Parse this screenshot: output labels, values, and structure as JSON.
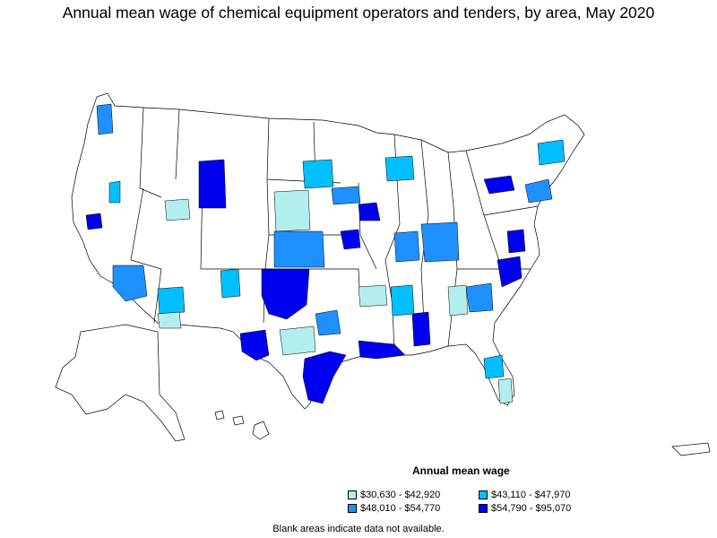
{
  "title": "Annual mean wage of chemical equipment operators and tenders, by area, May 2020",
  "legend": {
    "title": "Annual mean wage",
    "items": [
      {
        "label": "$30,630 - $42,920",
        "color": "#b3eeee"
      },
      {
        "label": "$43,110 - $47,970",
        "color": "#00bfff"
      },
      {
        "label": "$48,010 - $54,770",
        "color": "#1e90ff"
      },
      {
        "label": "$54,790 - $95,070",
        "color": "#0000ee"
      }
    ]
  },
  "footnote": "Blank areas indicate data not available.",
  "colors": {
    "outline": "#000000",
    "blank": "#ffffff",
    "tier1": "#b3eeee",
    "tier2": "#00bfff",
    "tier3": "#1e90ff",
    "tier4": "#0000ee"
  }
}
